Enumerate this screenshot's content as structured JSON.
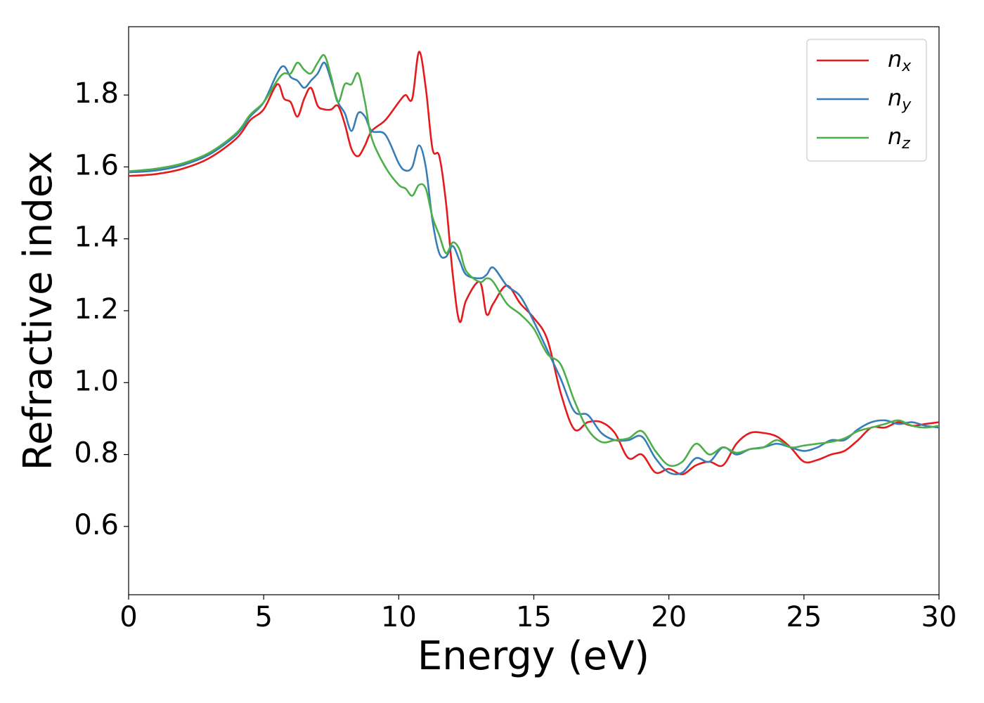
{
  "chart_data": {
    "type": "line",
    "x_label": "Energy (eV)",
    "y_label": "Refractive index",
    "x": [
      0,
      1,
      2,
      3,
      4,
      4.5,
      5,
      5.5,
      5.75,
      6,
      6.25,
      6.5,
      6.75,
      7,
      7.25,
      7.5,
      7.75,
      8,
      8.25,
      8.5,
      8.75,
      9,
      9.5,
      10,
      10.25,
      10.5,
      10.75,
      11,
      11.25,
      11.5,
      11.75,
      12,
      12.25,
      12.5,
      13,
      13.25,
      13.5,
      14,
      14.5,
      15,
      15.5,
      16,
      16.5,
      17,
      17.5,
      18,
      18.5,
      19,
      19.5,
      20,
      20.5,
      21,
      21.5,
      22,
      22.5,
      23,
      23.5,
      24,
      24.5,
      25,
      25.5,
      26,
      26.5,
      27,
      27.5,
      28,
      28.5,
      29,
      29.5,
      30
    ],
    "series": [
      {
        "name": "nx",
        "color": "#e41a1c",
        "values": [
          1.575,
          1.58,
          1.595,
          1.625,
          1.68,
          1.73,
          1.76,
          1.83,
          1.79,
          1.78,
          1.74,
          1.79,
          1.82,
          1.77,
          1.76,
          1.76,
          1.77,
          1.72,
          1.65,
          1.63,
          1.66,
          1.7,
          1.73,
          1.78,
          1.8,
          1.79,
          1.92,
          1.82,
          1.65,
          1.63,
          1.5,
          1.3,
          1.17,
          1.23,
          1.28,
          1.19,
          1.22,
          1.27,
          1.22,
          1.18,
          1.12,
          0.97,
          0.87,
          0.89,
          0.89,
          0.86,
          0.79,
          0.8,
          0.75,
          0.76,
          0.745,
          0.77,
          0.78,
          0.77,
          0.83,
          0.86,
          0.86,
          0.85,
          0.82,
          0.78,
          0.785,
          0.8,
          0.81,
          0.84,
          0.875,
          0.875,
          0.89,
          0.88,
          0.885,
          0.89
        ]
      },
      {
        "name": "ny",
        "color": "#377eb8",
        "values": [
          1.585,
          1.59,
          1.605,
          1.635,
          1.69,
          1.74,
          1.78,
          1.86,
          1.88,
          1.85,
          1.84,
          1.82,
          1.84,
          1.86,
          1.89,
          1.84,
          1.78,
          1.75,
          1.7,
          1.75,
          1.74,
          1.7,
          1.69,
          1.61,
          1.59,
          1.6,
          1.66,
          1.6,
          1.45,
          1.36,
          1.35,
          1.38,
          1.34,
          1.3,
          1.29,
          1.3,
          1.32,
          1.27,
          1.24,
          1.17,
          1.09,
          1.01,
          0.92,
          0.91,
          0.86,
          0.84,
          0.84,
          0.85,
          0.79,
          0.75,
          0.75,
          0.79,
          0.78,
          0.82,
          0.8,
          0.815,
          0.82,
          0.83,
          0.82,
          0.81,
          0.82,
          0.84,
          0.84,
          0.87,
          0.89,
          0.895,
          0.885,
          0.89,
          0.88,
          0.875
        ]
      },
      {
        "name": "nz",
        "color": "#4daf4a",
        "values": [
          1.588,
          1.595,
          1.61,
          1.64,
          1.695,
          1.745,
          1.78,
          1.84,
          1.86,
          1.86,
          1.89,
          1.87,
          1.86,
          1.89,
          1.91,
          1.85,
          1.78,
          1.83,
          1.83,
          1.86,
          1.78,
          1.68,
          1.6,
          1.55,
          1.54,
          1.52,
          1.55,
          1.54,
          1.46,
          1.41,
          1.36,
          1.39,
          1.37,
          1.31,
          1.28,
          1.29,
          1.28,
          1.22,
          1.19,
          1.15,
          1.08,
          1.05,
          0.95,
          0.87,
          0.835,
          0.84,
          0.845,
          0.865,
          0.81,
          0.77,
          0.78,
          0.83,
          0.8,
          0.82,
          0.805,
          0.815,
          0.82,
          0.84,
          0.82,
          0.825,
          0.83,
          0.835,
          0.845,
          0.865,
          0.875,
          0.885,
          0.895,
          0.88,
          0.875,
          0.88
        ]
      }
    ],
    "xlim": [
      0,
      30
    ],
    "xticks": [
      0,
      5,
      10,
      15,
      20,
      25,
      30
    ],
    "ylim": [
      0.41,
      1.99
    ],
    "yticks": [
      0.6,
      0.8,
      {
        "value": 1,
        "label": "1.0"
      },
      1.2,
      1.4,
      1.6,
      1.8
    ],
    "legend": "upper right"
  }
}
